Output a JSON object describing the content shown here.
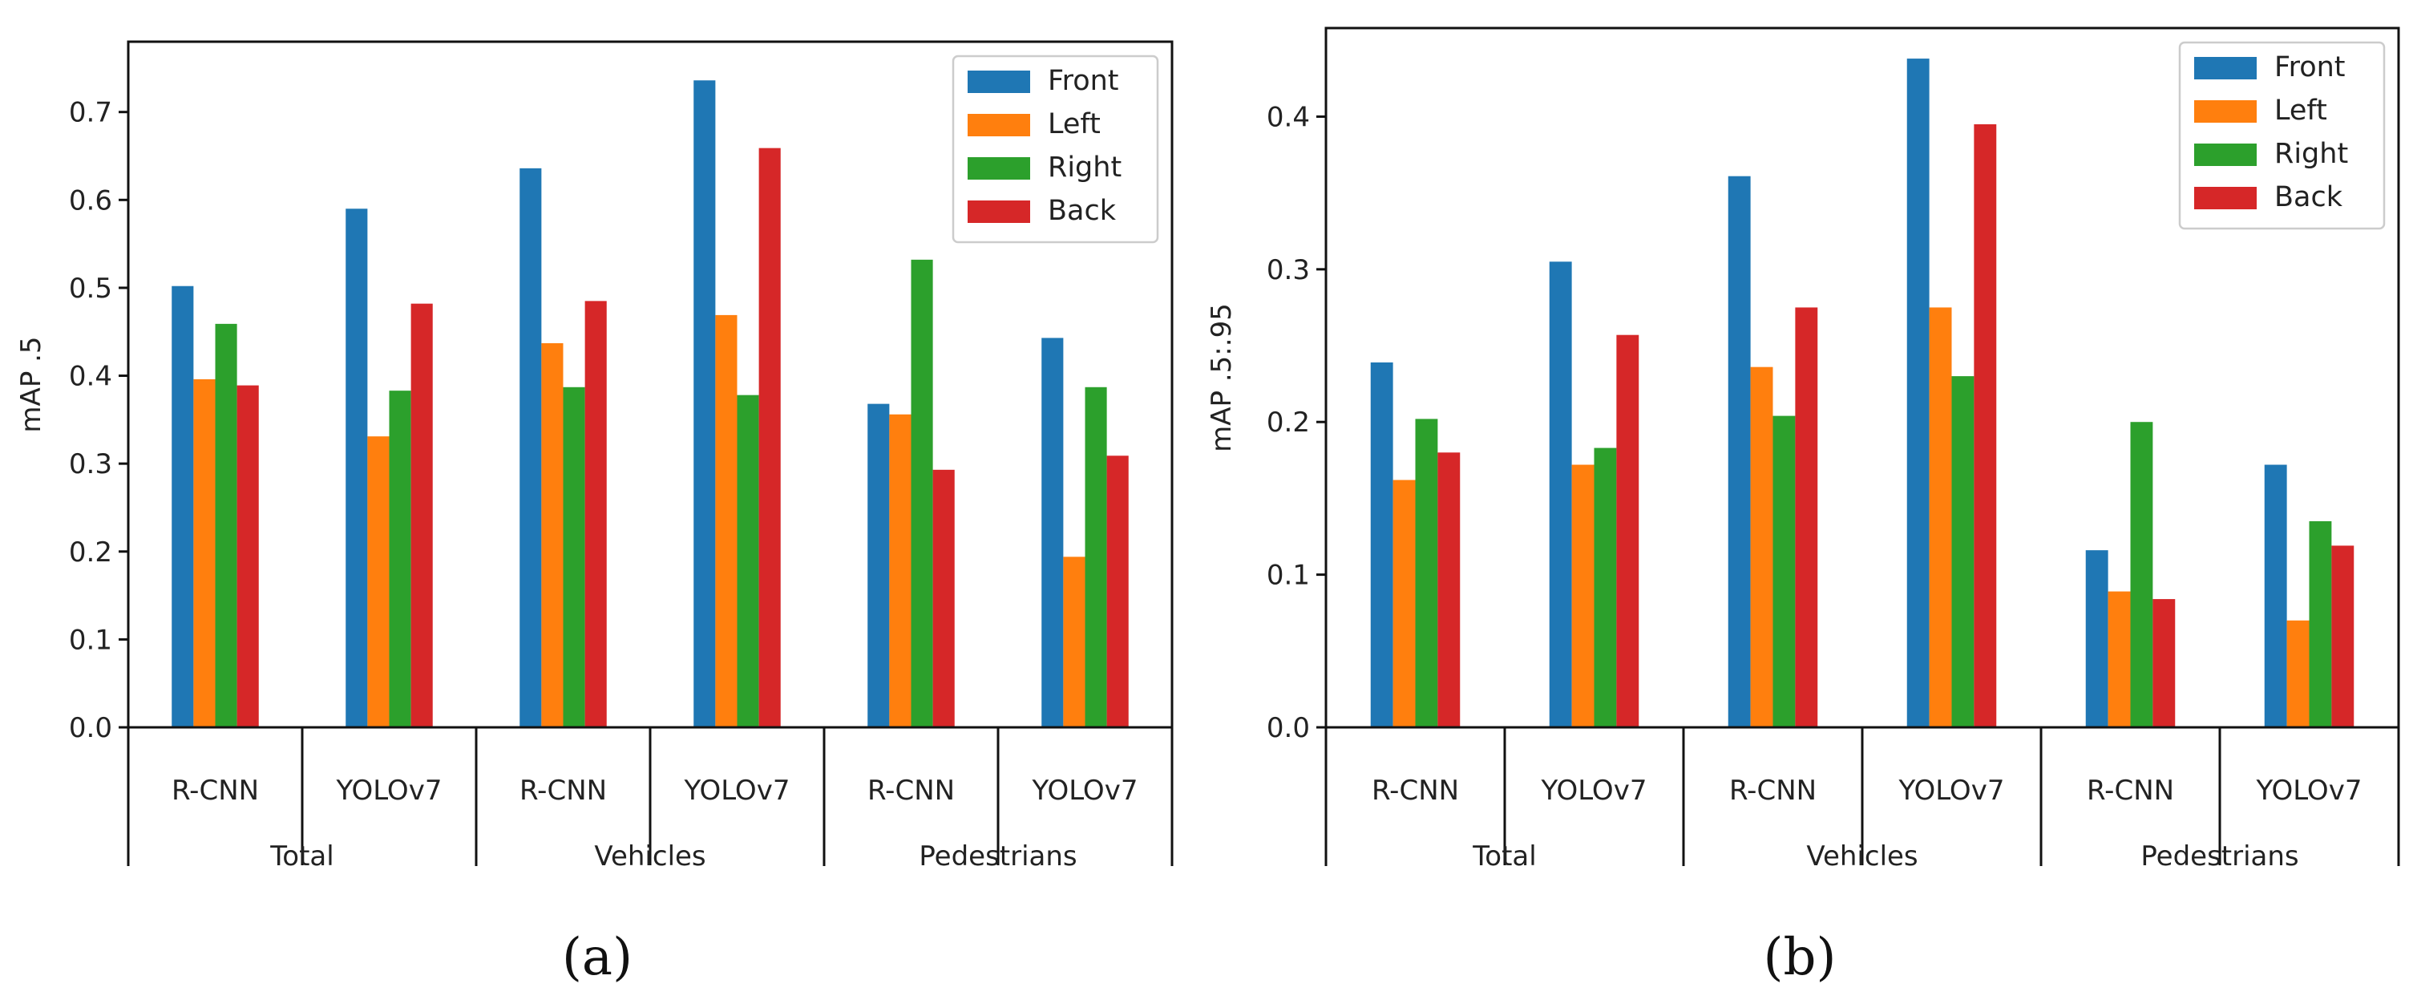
{
  "chart_data": [
    {
      "type": "bar",
      "caption": "(a)",
      "ylabel": "mAP .5",
      "ylim": [
        0,
        0.78
      ],
      "yticks": [
        "0.0",
        "0.1",
        "0.2",
        "0.3",
        "0.4",
        "0.5",
        "0.6",
        "0.7"
      ],
      "groups": [
        "Total",
        "Vehicles",
        "Pedestrians"
      ],
      "categories": [
        "R-CNN",
        "YOLOv7",
        "R-CNN",
        "YOLOv7",
        "R-CNN",
        "YOLOv7"
      ],
      "legend_position": "top-right",
      "series": [
        {
          "name": "Front",
          "color": "#1f77b4",
          "values": [
            0.502,
            0.59,
            0.636,
            0.736,
            0.368,
            0.443
          ]
        },
        {
          "name": "Left",
          "color": "#ff7f0e",
          "values": [
            0.396,
            0.331,
            0.437,
            0.469,
            0.356,
            0.194
          ]
        },
        {
          "name": "Right",
          "color": "#2ca02c",
          "values": [
            0.459,
            0.383,
            0.387,
            0.378,
            0.532,
            0.387
          ]
        },
        {
          "name": "Back",
          "color": "#d62728",
          "values": [
            0.389,
            0.482,
            0.485,
            0.659,
            0.293,
            0.309
          ]
        }
      ]
    },
    {
      "type": "bar",
      "caption": "(b)",
      "ylabel": "mAP .5:.95",
      "ylim": [
        0,
        0.458
      ],
      "yticks": [
        "0.0",
        "0.1",
        "0.2",
        "0.3",
        "0.4"
      ],
      "groups": [
        "Total",
        "Vehicles",
        "Pedestrians"
      ],
      "categories": [
        "R-CNN",
        "YOLOv7",
        "R-CNN",
        "YOLOv7",
        "R-CNN",
        "YOLOv7"
      ],
      "legend_position": "top-right",
      "series": [
        {
          "name": "Front",
          "color": "#1f77b4",
          "values": [
            0.239,
            0.305,
            0.361,
            0.438,
            0.116,
            0.172
          ]
        },
        {
          "name": "Left",
          "color": "#ff7f0e",
          "values": [
            0.162,
            0.172,
            0.236,
            0.275,
            0.089,
            0.07
          ]
        },
        {
          "name": "Right",
          "color": "#2ca02c",
          "values": [
            0.202,
            0.183,
            0.204,
            0.23,
            0.2,
            0.135
          ]
        },
        {
          "name": "Back",
          "color": "#d62728",
          "values": [
            0.18,
            0.257,
            0.275,
            0.395,
            0.084,
            0.119
          ]
        }
      ]
    }
  ]
}
